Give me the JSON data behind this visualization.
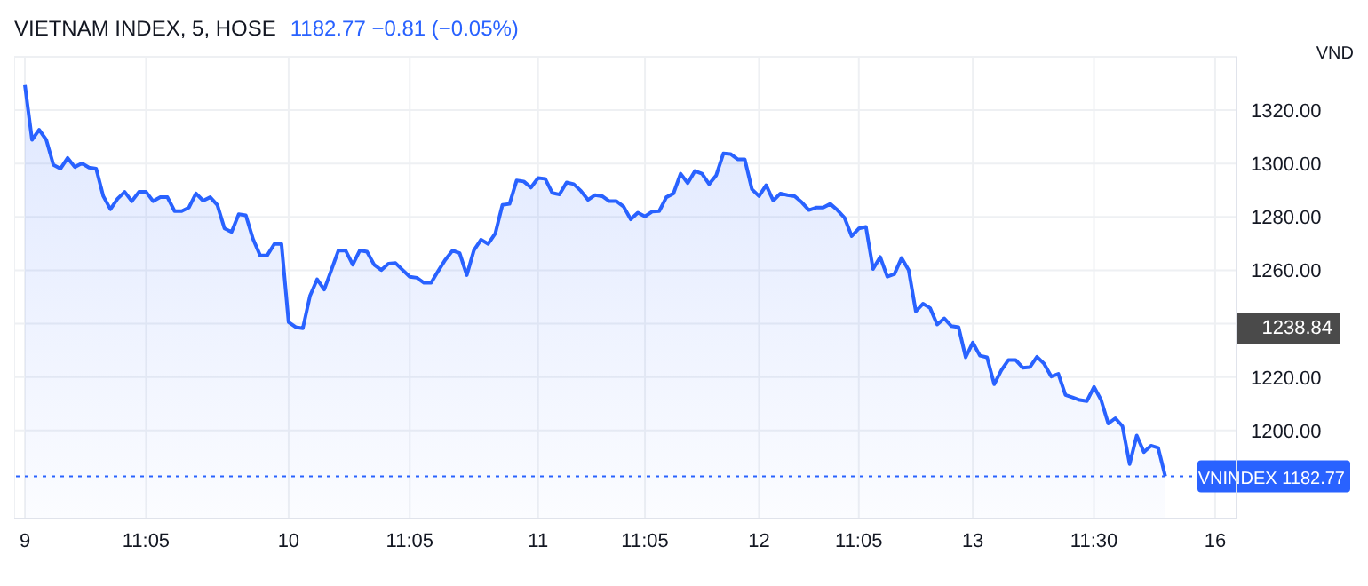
{
  "chart_data": {
    "type": "area",
    "title": "VIETNAM INDEX, 5, HOSE",
    "subtitle": "1182.77 −0.81 (−0.05%)",
    "ylabel": "VND",
    "categories": [
      "9",
      null,
      null,
      null,
      null,
      null,
      null,
      null,
      null,
      null,
      null,
      null,
      null,
      null,
      null,
      null,
      null,
      "11:05",
      null,
      null,
      null,
      null,
      null,
      null,
      null,
      null,
      null,
      null,
      null,
      null,
      null,
      null,
      null,
      null,
      null,
      null,
      null,
      "10",
      null,
      null,
      null,
      null,
      null,
      null,
      null,
      null,
      null,
      null,
      null,
      null,
      null,
      null,
      null,
      null,
      "11:05",
      null,
      null,
      null,
      null,
      null,
      null,
      null,
      null,
      null,
      null,
      null,
      null,
      null,
      null,
      null,
      null,
      null,
      "11",
      null,
      null,
      null,
      null,
      null,
      null,
      null,
      null,
      null,
      null,
      null,
      null,
      null,
      null,
      "11:05",
      null,
      null,
      null,
      null,
      null,
      null,
      null,
      null,
      null,
      null,
      null,
      null,
      null,
      null,
      null,
      "12",
      null,
      null,
      null,
      null,
      null,
      null,
      null,
      null,
      null,
      null,
      null,
      null,
      null,
      "11:05",
      null,
      null,
      null,
      null,
      null,
      null,
      null,
      null,
      null,
      null,
      null,
      null,
      null,
      null,
      null,
      "13",
      null,
      null,
      null,
      null,
      null,
      null,
      null,
      null,
      null,
      null,
      null,
      null,
      null,
      null,
      null,
      null,
      "11:30",
      null,
      null,
      null,
      null,
      null,
      null,
      null,
      null,
      null,
      null,
      null,
      null,
      null,
      null,
      null,
      null,
      "16",
      null,
      null,
      null
    ],
    "series": [
      {
        "color": "#2962ff",
        "values": [
          1329.4,
          1308.9,
          1312.7,
          1308.9,
          1299.5,
          1298.1,
          1302.1,
          1298.7,
          1300.1,
          1298.5,
          1298.1,
          1287.8,
          1282.9,
          1286.8,
          1289.4,
          1285.9,
          1289.4,
          1289.4,
          1285.9,
          1287.4,
          1287.4,
          1282.2,
          1282.2,
          1283.5,
          1288.8,
          1286.1,
          1287.4,
          1284.5,
          1275.7,
          1274.4,
          1281.0,
          1280.6,
          1271.8,
          1265.6,
          1265.6,
          1269.9,
          1269.9,
          1240.6,
          1238.7,
          1238.3,
          1250.4,
          1256.6,
          1252.8,
          1260.1,
          1267.5,
          1267.4,
          1262.1,
          1267.5,
          1267.0,
          1262.1,
          1260.1,
          1262.5,
          1262.7,
          1260.1,
          1257.6,
          1257.2,
          1255.3,
          1255.3,
          1259.8,
          1264.0,
          1267.4,
          1266.4,
          1258.2,
          1267.5,
          1271.5,
          1269.9,
          1273.8,
          1284.5,
          1284.9,
          1293.7,
          1293.3,
          1291.0,
          1294.6,
          1294.3,
          1289.0,
          1288.4,
          1292.9,
          1292.3,
          1289.8,
          1286.4,
          1288.2,
          1287.8,
          1285.9,
          1285.9,
          1283.9,
          1279.1,
          1281.6,
          1280.2,
          1282.0,
          1282.2,
          1287.4,
          1288.8,
          1296.2,
          1292.7,
          1297.2,
          1296.2,
          1292.3,
          1295.6,
          1303.8,
          1303.6,
          1301.6,
          1301.6,
          1290.4,
          1287.8,
          1291.9,
          1286.1,
          1288.8,
          1288.2,
          1287.8,
          1285.5,
          1282.6,
          1283.5,
          1283.5,
          1284.9,
          1282.6,
          1279.7,
          1272.8,
          1275.7,
          1276.3,
          1260.5,
          1265.0,
          1257.6,
          1258.6,
          1264.6,
          1260.1,
          1244.6,
          1247.5,
          1245.9,
          1239.7,
          1242.0,
          1239.1,
          1238.7,
          1227.4,
          1232.9,
          1228.0,
          1227.4,
          1217.3,
          1222.5,
          1226.4,
          1226.4,
          1223.5,
          1223.7,
          1227.6,
          1225.0,
          1220.2,
          1221.2,
          1213.3,
          1212.4,
          1211.4,
          1211.0,
          1216.3,
          1211.4,
          1202.6,
          1204.6,
          1201.6,
          1187.4,
          1198.1,
          1191.9,
          1194.3,
          1193.5,
          1182.77,
          null,
          null,
          null,
          null,
          null,
          null,
          null,
          null,
          null,
          null
        ]
      }
    ],
    "ylim": [
      1167,
      1340
    ],
    "yticks": [
      {
        "value": 1200,
        "label": "1200.00"
      },
      {
        "value": 1220,
        "label": "1220.00"
      },
      {
        "value": 1240,
        "label": null
      },
      {
        "value": 1260,
        "label": "1260.00"
      },
      {
        "value": 1280,
        "label": "1280.00"
      },
      {
        "value": 1300,
        "label": "1300.00"
      },
      {
        "value": 1320,
        "label": "1320.00"
      }
    ],
    "grid": true,
    "ref_lines": [
      {
        "axis": "y",
        "value": 1182.77,
        "label": "VNINDEX 1182.77",
        "color": "#2962ff",
        "line_style": "dotted"
      }
    ],
    "annotations": [
      "1238.84"
    ]
  }
}
